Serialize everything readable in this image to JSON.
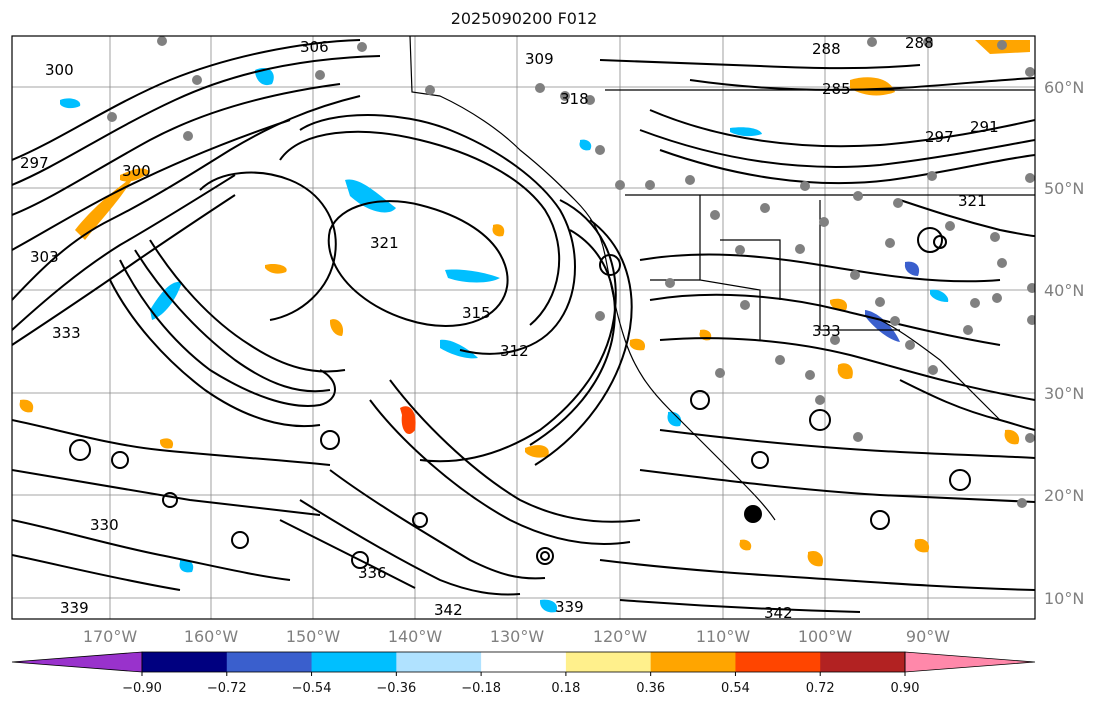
{
  "title": "2025090200 F012",
  "latitude_labels": [
    "60°N",
    "50°N",
    "40°N",
    "30°N",
    "20°N",
    "10°N"
  ],
  "longitude_labels": [
    "170°W",
    "160°W",
    "150°W",
    "140°W",
    "130°W",
    "120°W",
    "110°W",
    "100°W",
    "90°W"
  ],
  "contour_labels": [
    "300",
    "297",
    "291",
    "288",
    "285",
    "306",
    "309",
    "312",
    "315",
    "318",
    "321",
    "330",
    "333",
    "336",
    "339",
    "342",
    "303",
    "300",
    "297",
    "288",
    "321",
    "333",
    "339",
    "342"
  ],
  "colorbar": {
    "tick_labels": [
      "−0.90",
      "−0.72",
      "−0.54",
      "−0.36",
      "−0.18",
      "0.18",
      "0.36",
      "0.54",
      "0.72",
      "0.90"
    ],
    "colors": [
      "#9932cc",
      "#000080",
      "#3a5fcd",
      "#00bfff",
      "#b0e2ff",
      "#ffffff",
      "#fff08c",
      "#ffa500",
      "#ff4500",
      "#b22222",
      "#ff88aa"
    ]
  },
  "colors": {
    "contour": "#000000",
    "grid": "#888888",
    "coast": "#000000",
    "station_marker": "#808080",
    "pos_small": "#ffa500",
    "neg_small": "#00bfff"
  }
}
